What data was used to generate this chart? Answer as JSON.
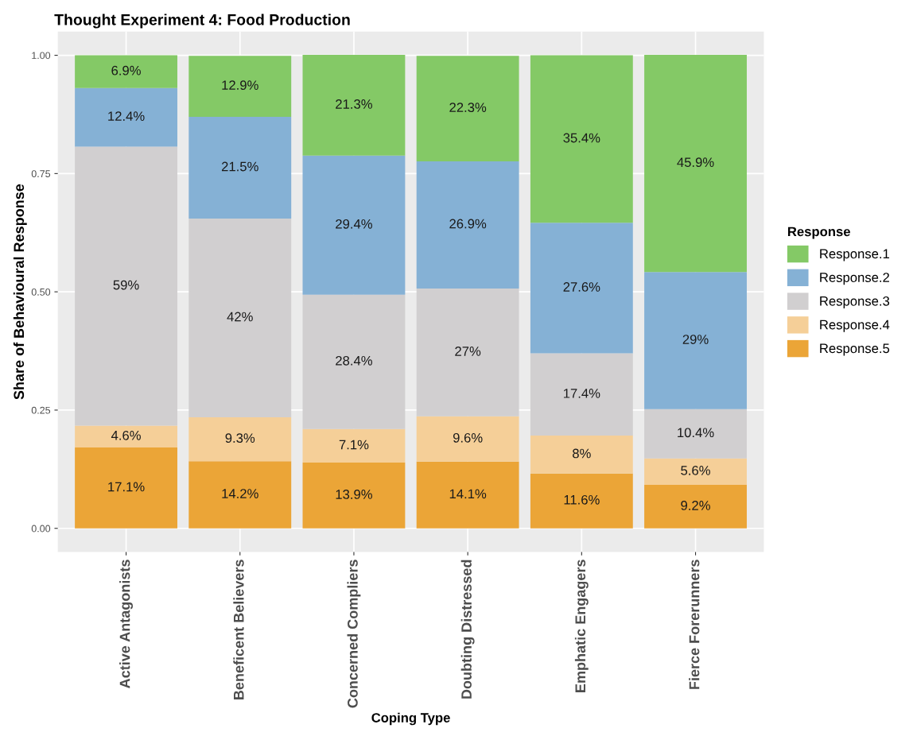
{
  "chart_data": {
    "type": "bar",
    "stacked": true,
    "title": "Thought Experiment 4: Food Production",
    "xlabel": "Coping Type",
    "ylabel": "Share of Behavioural Response",
    "legend_title": "Response",
    "legend": "right",
    "grid": true,
    "categories": [
      "Active Antagonists",
      "Beneficent Believers",
      "Concerned Compliers",
      "Doubting Distressed",
      "Emphatic Engagers",
      "Fierce Forerunners"
    ],
    "ylim": [
      -0.05,
      1.05
    ],
    "yticks": [
      {
        "value": 0,
        "label": "0.00"
      },
      {
        "value": 0.25,
        "label": "0.25"
      },
      {
        "value": 0.5,
        "label": "0.50"
      },
      {
        "value": 0.75,
        "label": "0.75"
      },
      {
        "value": 1,
        "label": "1.00"
      }
    ],
    "series": [
      {
        "name": "Response.5",
        "color": "#eba537",
        "values": [
          0.171,
          0.142,
          0.139,
          0.141,
          0.116,
          0.092
        ],
        "value_labels": [
          "17.1%",
          "14.2%",
          "13.9%",
          "14.1%",
          "11.6%",
          "9.2%"
        ]
      },
      {
        "name": "Response.4",
        "color": "#f5cf98",
        "values": [
          0.046,
          0.093,
          0.071,
          0.096,
          0.08,
          0.056
        ],
        "value_labels": [
          "4.6%",
          "9.3%",
          "7.1%",
          "9.6%",
          "8%",
          "5.6%"
        ]
      },
      {
        "name": "Response.3",
        "color": "#d1cfd0",
        "values": [
          0.59,
          0.42,
          0.284,
          0.27,
          0.174,
          0.104
        ],
        "value_labels": [
          "59%",
          "42%",
          "28.4%",
          "27%",
          "17.4%",
          "10.4%"
        ]
      },
      {
        "name": "Response.2",
        "color": "#85b1d5",
        "values": [
          0.124,
          0.215,
          0.294,
          0.269,
          0.276,
          0.29
        ],
        "value_labels": [
          "12.4%",
          "21.5%",
          "29.4%",
          "26.9%",
          "27.6%",
          "29%"
        ]
      },
      {
        "name": "Response.1",
        "color": "#84c966",
        "values": [
          0.069,
          0.129,
          0.213,
          0.223,
          0.354,
          0.459
        ],
        "value_labels": [
          "6.9%",
          "12.9%",
          "21.3%",
          "22.3%",
          "35.4%",
          "45.9%"
        ]
      }
    ]
  }
}
